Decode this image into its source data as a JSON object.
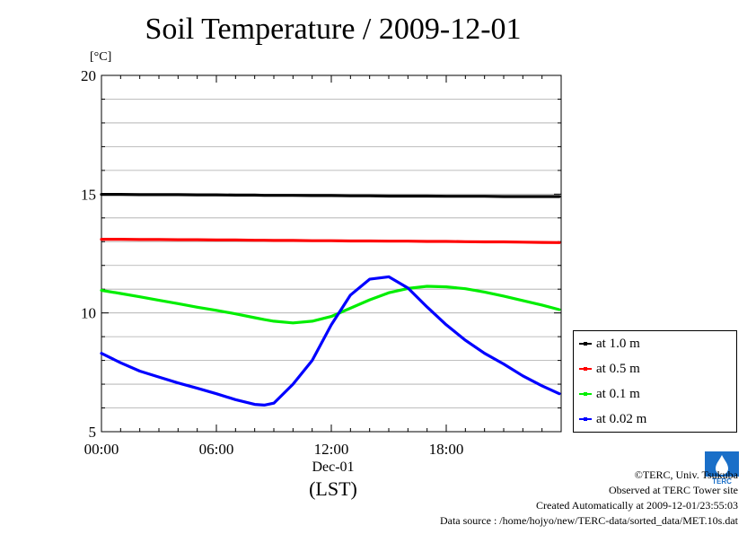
{
  "chart_data": {
    "type": "line",
    "title": "Soil Temperature / 2009-12-01",
    "ylabel": "[°C]",
    "xlabel": "Dec-01",
    "xlabel2": "(LST)",
    "ylim": [
      5,
      20
    ],
    "yticks": [
      "5",
      "10",
      "15",
      "20"
    ],
    "xticks": [
      "00:00",
      "06:00",
      "12:00",
      "18:00"
    ],
    "xlim_hours": [
      0,
      24
    ],
    "grid": true,
    "legend_position": "right",
    "x_hours": [
      0,
      1,
      2,
      3,
      4,
      5,
      6,
      7,
      8,
      8.5,
      9,
      10,
      11,
      12,
      13,
      14,
      15,
      16,
      17,
      18,
      19,
      20,
      21,
      22,
      23,
      23.9
    ],
    "series": [
      {
        "name": "at 1.0 m",
        "color": "#000000",
        "values": [
          14.99,
          14.99,
          14.98,
          14.98,
          14.98,
          14.97,
          14.97,
          14.96,
          14.96,
          14.95,
          14.95,
          14.95,
          14.94,
          14.94,
          14.93,
          14.93,
          14.92,
          14.92,
          14.92,
          14.91,
          14.91,
          14.91,
          14.9,
          14.9,
          14.9,
          14.9
        ]
      },
      {
        "name": "at 0.5 m",
        "color": "#ff0000",
        "values": [
          13.1,
          13.1,
          13.09,
          13.09,
          13.08,
          13.08,
          13.07,
          13.07,
          13.06,
          13.06,
          13.05,
          13.05,
          13.04,
          13.04,
          13.03,
          13.03,
          13.02,
          13.02,
          13.01,
          13.01,
          13.0,
          12.99,
          12.99,
          12.98,
          12.97,
          12.96
        ]
      },
      {
        "name": "at 0.1 m",
        "color": "#00ee00",
        "values": [
          10.95,
          10.82,
          10.68,
          10.53,
          10.39,
          10.24,
          10.11,
          9.96,
          9.8,
          9.72,
          9.65,
          9.58,
          9.65,
          9.85,
          10.2,
          10.55,
          10.85,
          11.03,
          11.12,
          11.1,
          11.02,
          10.88,
          10.71,
          10.52,
          10.33,
          10.14
        ]
      },
      {
        "name": "at 0.02 m",
        "color": "#0000ff",
        "values": [
          8.3,
          7.9,
          7.55,
          7.3,
          7.05,
          6.83,
          6.6,
          6.35,
          6.15,
          6.12,
          6.2,
          7.0,
          8.0,
          9.5,
          10.75,
          11.42,
          11.52,
          11.05,
          10.25,
          9.5,
          8.85,
          8.3,
          7.85,
          7.35,
          6.93,
          6.6
        ]
      }
    ]
  },
  "credits": {
    "copyright": "©TERC, Univ. Tsukuba",
    "site": "Observed at TERC Tower site",
    "created": "Created Automatically at 2009-12-01/23:55:03",
    "source": "Data source : /home/hojyo/new/TERC-data/sorted_data/MET.10s.dat",
    "logo_text": "TERC"
  }
}
